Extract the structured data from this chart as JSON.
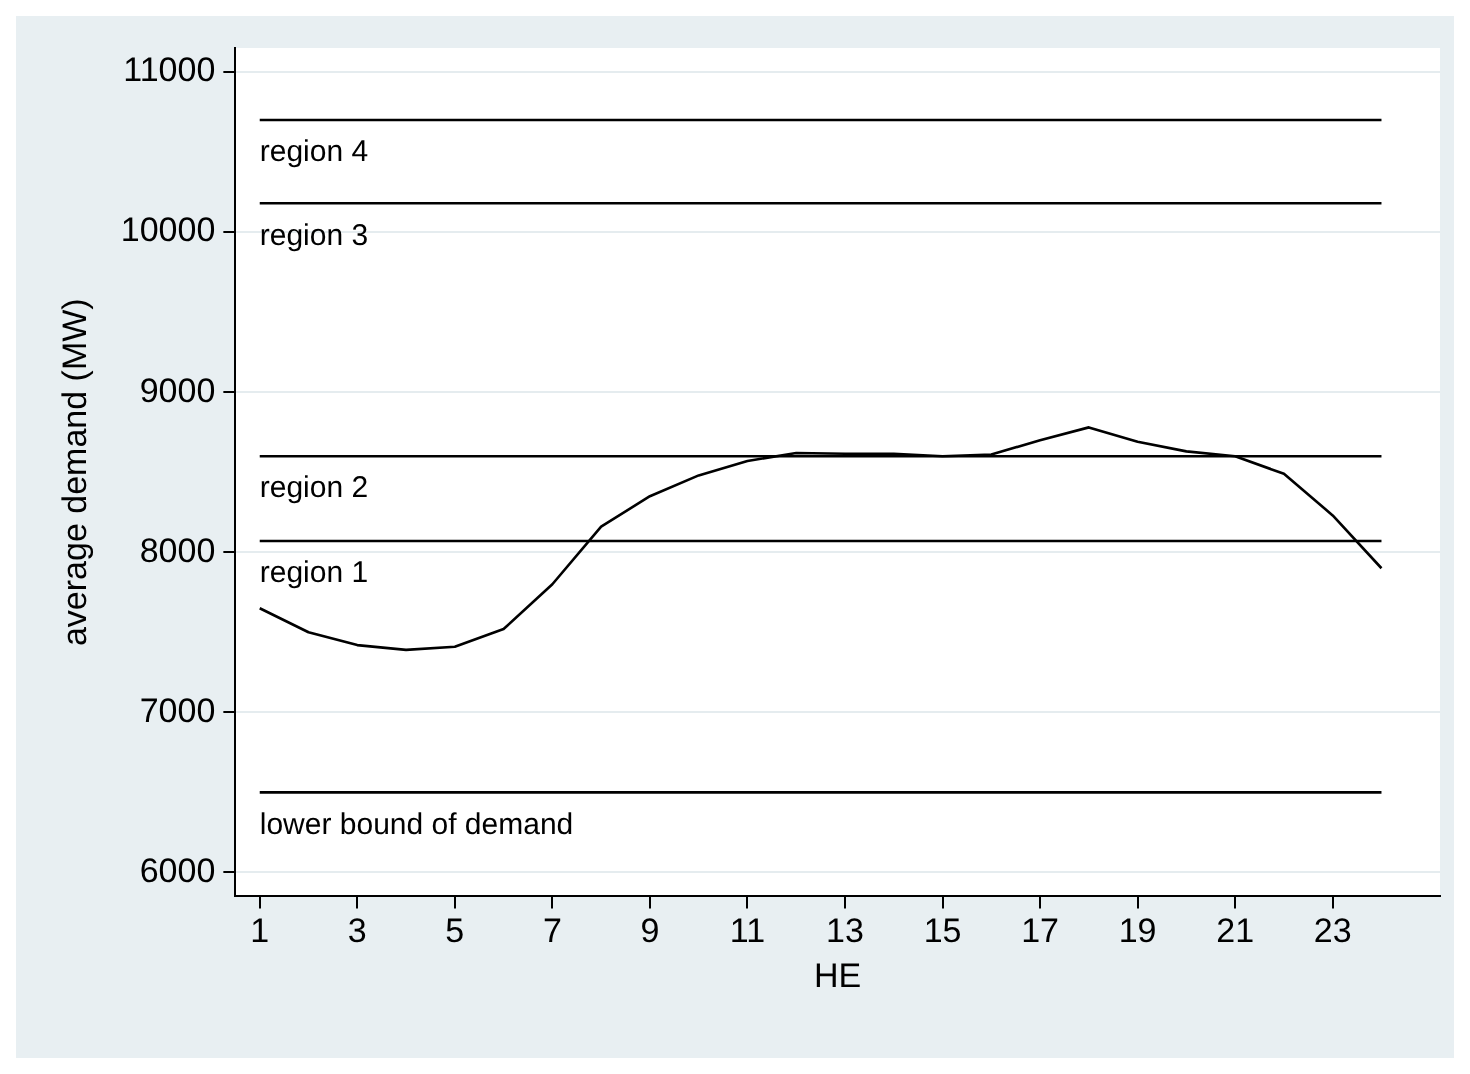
{
  "chart_data": {
    "type": "line",
    "xlabel": "HE",
    "ylabel": "average demand (MW)",
    "x": [
      1,
      2,
      3,
      4,
      5,
      6,
      7,
      8,
      9,
      10,
      11,
      12,
      13,
      14,
      15,
      16,
      17,
      18,
      19,
      20,
      21,
      22,
      23,
      24
    ],
    "series": [
      {
        "color": "#000000",
        "values": [
          7650,
          7500,
          7420,
          7390,
          7410,
          7520,
          7800,
          8160,
          8350,
          8480,
          8570,
          8620,
          8615,
          8615,
          8600,
          8610,
          8700,
          8780,
          8690,
          8630,
          8600,
          8490,
          8230,
          7900
        ]
      }
    ],
    "xlim": [
      0.5,
      25.2
    ],
    "xticks": [
      1,
      3,
      5,
      7,
      9,
      11,
      13,
      15,
      17,
      19,
      21,
      23
    ],
    "ylim": [
      5850,
      11150
    ],
    "yticks": [
      6000,
      7000,
      8000,
      9000,
      10000,
      11000
    ],
    "ref_lines": [
      {
        "axis": "y",
        "value": 10700,
        "label": "region 4",
        "color": "#000000"
      },
      {
        "axis": "y",
        "value": 10180,
        "label": "region 3",
        "color": "#000000"
      },
      {
        "axis": "y",
        "value": 8600,
        "label": "region 2",
        "color": "#000000"
      },
      {
        "axis": "y",
        "value": 8070,
        "label": "region 1",
        "color": "#000000"
      },
      {
        "axis": "y",
        "value": 6500,
        "label": "lower bound of demand",
        "color": "#000000"
      }
    ],
    "grid": "y",
    "legend": false,
    "marker": "none",
    "line_style": "solid"
  }
}
